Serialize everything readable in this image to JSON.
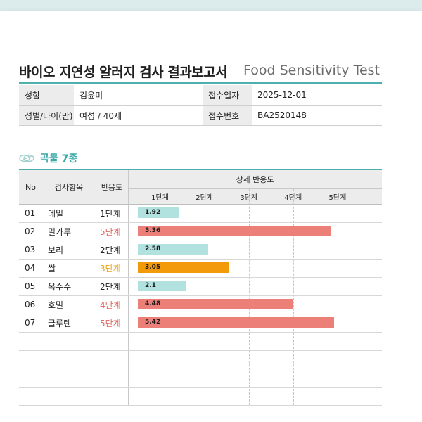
{
  "title": "바이오 지연성 알러지 검사 결과보고서",
  "subtitle": "Food Sensitivity Test",
  "info": {
    "name_label": "성함",
    "name": "김윤미",
    "date_label": "접수일자",
    "date": "2025-12-01",
    "gender_label": "성별/나이(만)",
    "gender": "여성 / 40세",
    "id_label": "접수번호",
    "id": "BA2520148"
  },
  "section": {
    "icon": "allergy-leaf-icon",
    "label": "곡물 7종"
  },
  "table": {
    "headers": {
      "no": "No",
      "item": "검사항목",
      "level": "반응도",
      "detail": "상세 반응도"
    },
    "scale": [
      "1단계",
      "2단계",
      "3단계",
      "4단계",
      "5단계"
    ],
    "rows": [
      {
        "no": "01",
        "item": "메밀",
        "level": "1단계",
        "value": "1.92",
        "color": "#b2e2df"
      },
      {
        "no": "02",
        "item": "밀가루",
        "level": "5단계",
        "value": "5.36",
        "color": "#ec8078"
      },
      {
        "no": "03",
        "item": "보리",
        "level": "2단계",
        "value": "2.58",
        "color": "#b2e2df"
      },
      {
        "no": "04",
        "item": "쌀",
        "level": "3단계",
        "value": "3.05",
        "color": "#f39a0b"
      },
      {
        "no": "05",
        "item": "옥수수",
        "level": "2단계",
        "value": "2.1",
        "color": "#b2e2df"
      },
      {
        "no": "06",
        "item": "호밀",
        "level": "4단계",
        "value": "4.48",
        "color": "#ec8078"
      },
      {
        "no": "07",
        "item": "글루텐",
        "level": "5단계",
        "value": "5.42",
        "color": "#ec8078"
      }
    ],
    "empty_rows": 4,
    "level_colors": {
      "1단계": "#222222",
      "2단계": "#222222",
      "3단계": "#e8a317",
      "4단계": "#e0665e",
      "5단계": "#e0665e"
    }
  }
}
